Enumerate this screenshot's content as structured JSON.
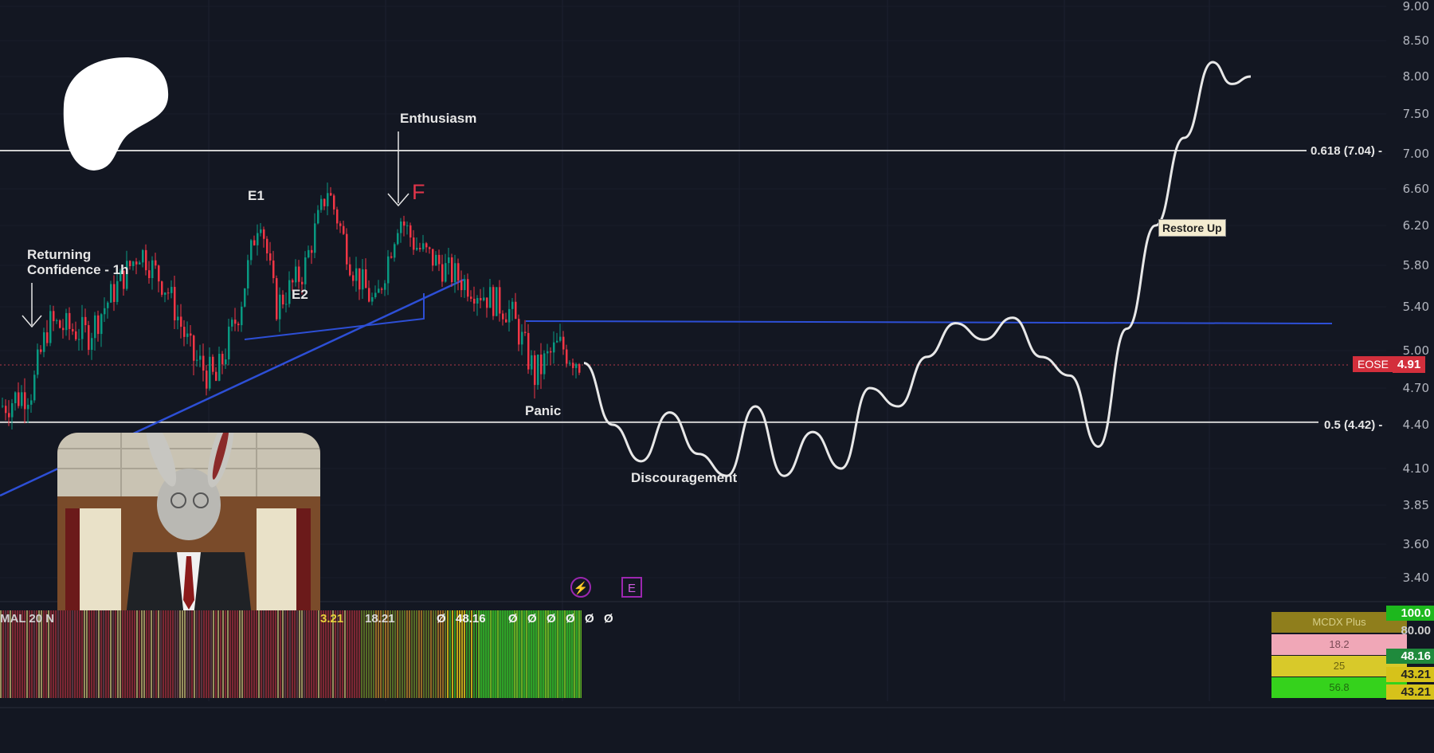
{
  "chart_data": {
    "type": "line",
    "ticker": "EOSE",
    "last_price": "4.91",
    "y_ticks": [
      "9.00",
      "8.50",
      "8.00",
      "7.50",
      "7.00",
      "6.60",
      "6.20",
      "5.80",
      "5.40",
      "5.00",
      "4.70",
      "4.40",
      "4.10",
      "3.85",
      "3.60",
      "3.40"
    ],
    "ylim": [
      3.3,
      9.0
    ],
    "fib_levels": [
      {
        "label": "0.618 (7.04) -",
        "value": 7.04
      },
      {
        "label": "0.5 (4.42) -",
        "value": 4.42
      }
    ],
    "resistance_level": 5.25,
    "projection": [
      {
        "x": 0,
        "y": 4.9
      },
      {
        "x": 3,
        "y": 4.4
      },
      {
        "x": 6,
        "y": 4.15
      },
      {
        "x": 9,
        "y": 4.5
      },
      {
        "x": 12,
        "y": 4.2
      },
      {
        "x": 15,
        "y": 4.05
      },
      {
        "x": 18,
        "y": 4.55
      },
      {
        "x": 21,
        "y": 4.05
      },
      {
        "x": 24,
        "y": 4.35
      },
      {
        "x": 27,
        "y": 4.1
      },
      {
        "x": 30,
        "y": 4.7
      },
      {
        "x": 33,
        "y": 4.55
      },
      {
        "x": 36,
        "y": 4.95
      },
      {
        "x": 39,
        "y": 5.25
      },
      {
        "x": 42,
        "y": 5.1
      },
      {
        "x": 45,
        "y": 5.3
      },
      {
        "x": 48,
        "y": 4.95
      },
      {
        "x": 51,
        "y": 4.8
      },
      {
        "x": 54,
        "y": 4.25
      },
      {
        "x": 57,
        "y": 5.2
      },
      {
        "x": 60,
        "y": 6.2
      },
      {
        "x": 63,
        "y": 7.2
      },
      {
        "x": 66,
        "y": 8.2
      },
      {
        "x": 68,
        "y": 7.9
      },
      {
        "x": 70,
        "y": 8.0
      }
    ],
    "annotations": {
      "returning_confidence": "Returning\nConfidence - 1h",
      "e1": "E1",
      "e2": "E2",
      "enthusiasm": "Enthusiasm",
      "f_marker": "F",
      "panic": "Panic",
      "discouragement": "Discouragement",
      "restore_up": "Restore Up"
    },
    "colors": {
      "background": "#131722",
      "white": "#e8e8e8",
      "blue": "#2d4fd6",
      "red": "#f23645",
      "green": "#089981"
    }
  },
  "indicator": {
    "ticker_prefix": "MAL 20 N",
    "values": [
      "3.21",
      "18.21",
      "",
      "Ø",
      "48.16",
      "Ø",
      "Ø",
      "Ø",
      "Ø",
      "Ø",
      "Ø"
    ],
    "mcdx": {
      "title": "MCDX Plus",
      "rows": [
        "18.2",
        "25",
        "56.8"
      ]
    },
    "right_scale": [
      "100.0",
      "80.00",
      "48.16",
      "43.21",
      "43.21"
    ]
  },
  "icons": [
    "lightning-icon",
    "earnings-e-icon"
  ]
}
